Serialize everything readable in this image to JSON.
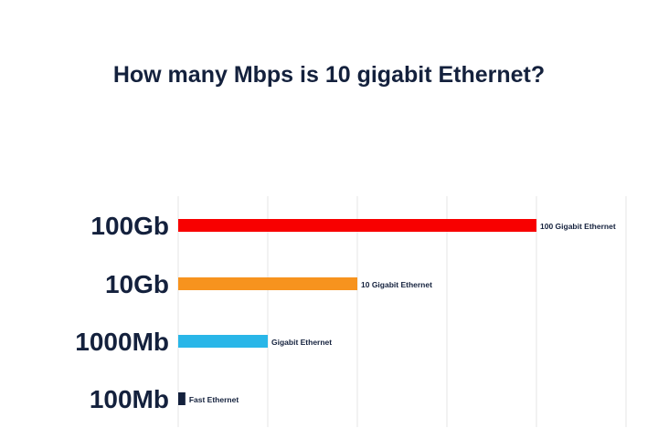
{
  "chart_data": {
    "type": "bar",
    "orientation": "horizontal",
    "title": "How many Mbps is 10 gigabit Ethernet?",
    "categories": [
      "100Gb",
      "10Gb",
      "1000Mb",
      "100Mb"
    ],
    "values": [
      4,
      2,
      1,
      0.08
    ],
    "bar_labels": [
      "100 Gigabit Ethernet",
      "10 Gigabit Ethernet",
      "Gigabit Ethernet",
      "Fast Ethernet"
    ],
    "colors": [
      "#f80000",
      "#f7931e",
      "#29b6e8",
      "#14213d"
    ],
    "xlim": [
      0,
      5
    ],
    "grid": true,
    "xlabel": "",
    "ylabel": ""
  }
}
